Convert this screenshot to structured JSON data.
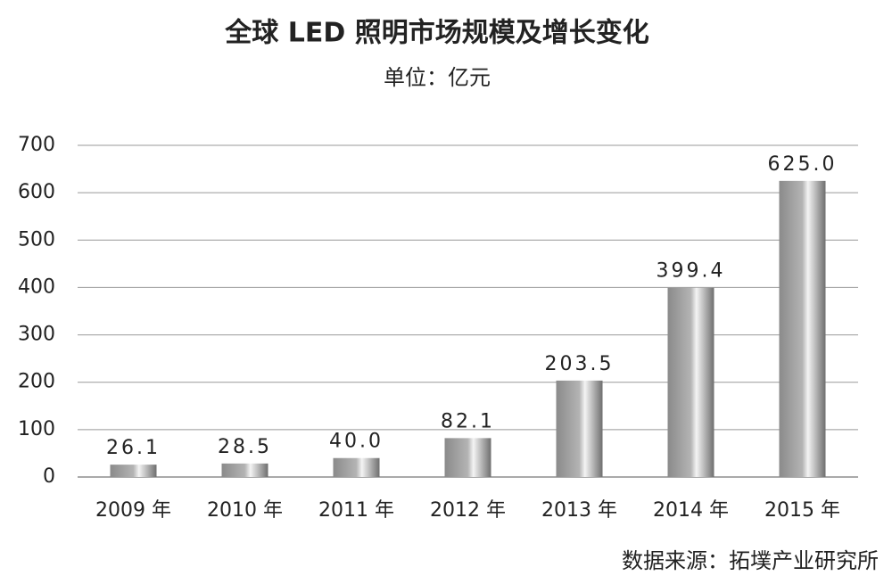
{
  "chart_data": {
    "type": "bar",
    "title": "全球 LED 照明市场规模及增长变化",
    "subtitle": "单位：亿元",
    "source": "数据来源：拓墣产业研究所",
    "categories": [
      "2009 年",
      "2010 年",
      "2011 年",
      "2012 年",
      "2013 年",
      "2014 年",
      "2015 年"
    ],
    "values": [
      26.1,
      28.5,
      40.0,
      82.1,
      203.5,
      399.4,
      625.0
    ],
    "value_labels": [
      "26.1",
      "28.5",
      "40.0",
      "82.1",
      "203.5",
      "399.4",
      "625.0"
    ],
    "color": "#b4b4b4",
    "ylim": [
      0,
      700
    ],
    "yticks": [
      0,
      100,
      200,
      300,
      400,
      500,
      600,
      700
    ],
    "grid": true
  }
}
